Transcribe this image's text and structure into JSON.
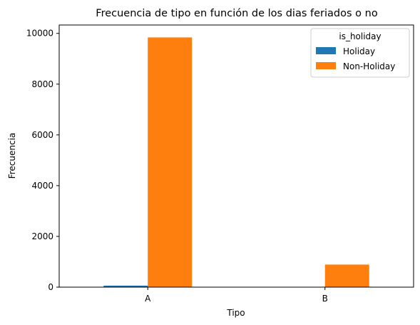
{
  "chart_data": {
    "type": "bar",
    "title": "Frecuencia de tipo en función de los dias feriados o no",
    "xlabel": "Tipo",
    "ylabel": "Frecuencia",
    "categories": [
      "A",
      "B"
    ],
    "series": [
      {
        "name": "Holiday",
        "values": [
          60,
          0
        ],
        "color": "#1f77b4"
      },
      {
        "name": "Non-Holiday",
        "values": [
          9840,
          890
        ],
        "color": "#ff7f0e"
      }
    ],
    "ylim": [
      0,
      10330
    ],
    "yticks": [
      0,
      2000,
      4000,
      6000,
      8000,
      10000
    ],
    "grid": false,
    "legend": {
      "title": "is_holiday",
      "placement": "top-right"
    }
  }
}
